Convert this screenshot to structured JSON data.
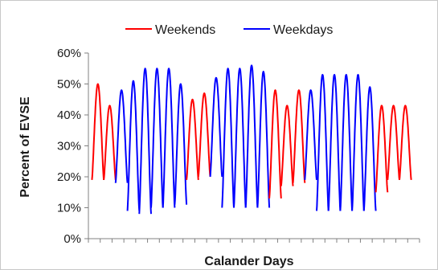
{
  "chart_data": {
    "type": "line",
    "title": "",
    "xlabel": "Calander Days",
    "ylabel": "Percent  of  EVSE",
    "ylim": [
      0,
      60
    ],
    "xlim": [
      0,
      28
    ],
    "yticks": [
      "0%",
      "10%",
      "20%",
      "30%",
      "40%",
      "50%",
      "60%"
    ],
    "ytick_values": [
      0,
      10,
      20,
      30,
      40,
      50,
      60
    ],
    "xtick_count": 29,
    "grid": false,
    "legend_position": "top",
    "series": [
      {
        "name": "Weekends",
        "color": "#ff0000"
      },
      {
        "name": "Weekdays",
        "color": "#0000ff"
      }
    ],
    "days": [
      {
        "type": "Weekends",
        "min": 19,
        "max": 50
      },
      {
        "type": "Weekends",
        "min": 19,
        "max": 43
      },
      {
        "type": "Weekdays",
        "min": 18,
        "max": 48
      },
      {
        "type": "Weekdays",
        "min": 9,
        "max": 51
      },
      {
        "type": "Weekdays",
        "min": 8,
        "max": 55
      },
      {
        "type": "Weekdays",
        "min": 10,
        "max": 55
      },
      {
        "type": "Weekdays",
        "min": 10,
        "max": 55
      },
      {
        "type": "Weekdays",
        "min": 11,
        "max": 50
      },
      {
        "type": "Weekends",
        "min": 19,
        "max": 45
      },
      {
        "type": "Weekends",
        "min": 20,
        "max": 47
      },
      {
        "type": "Weekdays",
        "min": 20,
        "max": 52
      },
      {
        "type": "Weekdays",
        "min": 10,
        "max": 55
      },
      {
        "type": "Weekdays",
        "min": 10,
        "max": 55
      },
      {
        "type": "Weekdays",
        "min": 10,
        "max": 56
      },
      {
        "type": "Weekdays",
        "min": 10,
        "max": 54
      },
      {
        "type": "Weekends",
        "min": 13,
        "max": 48
      },
      {
        "type": "Weekends",
        "min": 17,
        "max": 43
      },
      {
        "type": "Weekends",
        "min": 18,
        "max": 48
      },
      {
        "type": "Weekdays",
        "min": 19,
        "max": 48
      },
      {
        "type": "Weekdays",
        "min": 9,
        "max": 53
      },
      {
        "type": "Weekdays",
        "min": 9,
        "max": 53
      },
      {
        "type": "Weekdays",
        "min": 9,
        "max": 53
      },
      {
        "type": "Weekdays",
        "min": 9,
        "max": 53
      },
      {
        "type": "Weekdays",
        "min": 9,
        "max": 49
      },
      {
        "type": "Weekends",
        "min": 15,
        "max": 43
      },
      {
        "type": "Weekends",
        "min": 19,
        "max": 43
      },
      {
        "type": "Weekends",
        "min": 19,
        "max": 43
      }
    ]
  }
}
